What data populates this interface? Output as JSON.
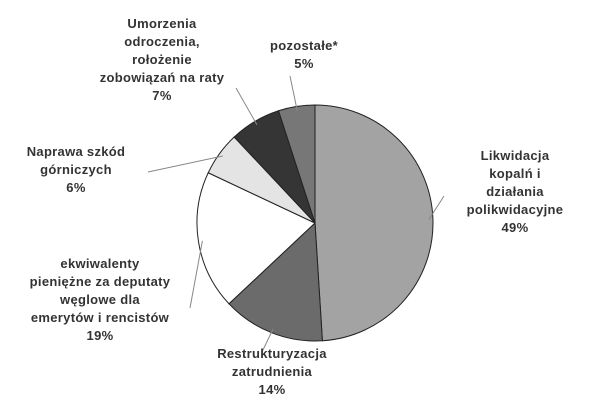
{
  "chart_data": {
    "type": "pie",
    "categories": [
      "Likwidacja kopalń i\ndziałania\npolikwidacyjne",
      "Restrukturyzacja\nzatrudnienia",
      "ekwiwalenty\npieniężne za deputaty\nwęglowe dla\nemerytów i rencistów",
      "Naprawa szkód\ngórniczych",
      "Umorzenia\nodroczenia,\nrołożenie\nzobowiązań na raty",
      "pozostałe*"
    ],
    "values": [
      49,
      14,
      19,
      6,
      7,
      5
    ],
    "value_labels": [
      "49%",
      "14%",
      "19%",
      "6%",
      "7%",
      "5%"
    ],
    "colors": [
      "#a3a3a3",
      "#6b6b6b",
      "#ffffff",
      "#e4e4e4",
      "#353535",
      "#777777"
    ]
  }
}
